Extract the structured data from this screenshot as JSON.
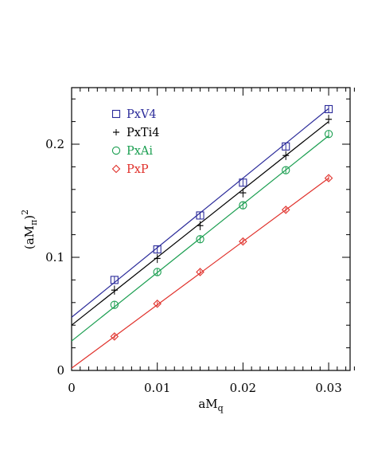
{
  "chart_data": {
    "type": "scatter",
    "xlabel": "aM",
    "xlabel_sub": "q",
    "ylabel": "(aM",
    "ylabel_sub": "π",
    "ylabel_close": ")",
    "ylabel_sup": "2",
    "xlim": [
      0,
      0.0325
    ],
    "ylim": [
      0,
      0.25
    ],
    "xticks": [
      0,
      0.01,
      0.02,
      0.03
    ],
    "xtick_labels": [
      "0",
      "0.01",
      "0.02",
      "0.03"
    ],
    "yticks": [
      0,
      0.1,
      0.2
    ],
    "ytick_labels": [
      "0",
      "0.1",
      "0.2"
    ],
    "x_minor_step": 0.001,
    "y_minor_step": 0.02,
    "legend_position": "top-left",
    "series": [
      {
        "name": "PxV4",
        "marker": "square",
        "color": "#2b2b9a",
        "x": [
          0.005,
          0.01,
          0.015,
          0.02,
          0.025,
          0.03
        ],
        "y": [
          0.08,
          0.107,
          0.137,
          0.166,
          0.198,
          0.231
        ],
        "err": [
          0.003,
          0.003,
          0.003,
          0.003,
          0.003,
          0.003
        ],
        "fit": {
          "intercept": 0.047,
          "slope": 6.15
        }
      },
      {
        "name": "PxTi4",
        "marker": "errorbar",
        "color": "#000000",
        "x": [
          0.005,
          0.01,
          0.015,
          0.02,
          0.025,
          0.03
        ],
        "y": [
          0.071,
          0.099,
          0.128,
          0.157,
          0.19,
          0.222
        ],
        "err": [
          0.004,
          0.004,
          0.004,
          0.004,
          0.004,
          0.004
        ],
        "fit": {
          "intercept": 0.04,
          "slope": 6.0
        }
      },
      {
        "name": "PxAi",
        "marker": "circle",
        "color": "#1a9e50",
        "x": [
          0.005,
          0.01,
          0.015,
          0.02,
          0.025,
          0.03
        ],
        "y": [
          0.058,
          0.087,
          0.116,
          0.146,
          0.177,
          0.209
        ],
        "err": [
          0.003,
          0.003,
          0.003,
          0.003,
          0.003,
          0.003
        ],
        "fit": {
          "intercept": 0.026,
          "slope": 6.05
        }
      },
      {
        "name": "PxP",
        "marker": "diamond",
        "color": "#e0302a",
        "x": [
          0.005,
          0.01,
          0.015,
          0.02,
          0.025,
          0.03
        ],
        "y": [
          0.03,
          0.059,
          0.087,
          0.114,
          0.142,
          0.17
        ],
        "err": [
          0.002,
          0.002,
          0.002,
          0.002,
          0.002,
          0.002
        ],
        "fit": {
          "intercept": 0.002,
          "slope": 5.6
        }
      }
    ]
  }
}
